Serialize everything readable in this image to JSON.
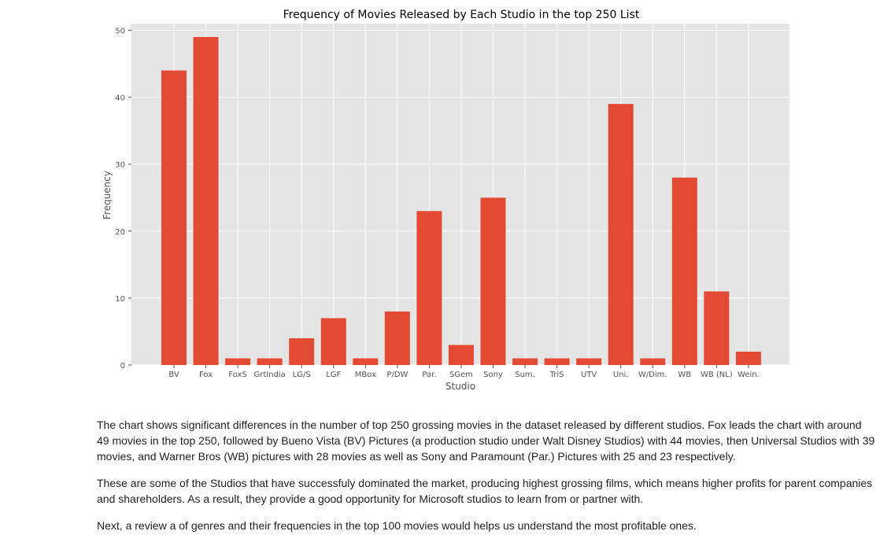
{
  "chart_data": {
    "type": "bar",
    "title": "Frequency of Movies Released by Each Studio in the top 250 List",
    "xlabel": "Studio",
    "ylabel": "Frequency",
    "categories": [
      "BV",
      "Fox",
      "FoxS",
      "GrtIndia",
      "LG/S",
      "LGF",
      "MBox",
      "P/DW",
      "Par.",
      "SGem",
      "Sony",
      "Sum.",
      "TriS",
      "UTV",
      "Uni.",
      "W/Dim.",
      "WB",
      "WB (NL)",
      "Wein."
    ],
    "values": [
      44,
      49,
      1,
      1,
      4,
      7,
      1,
      8,
      23,
      3,
      25,
      1,
      1,
      1,
      39,
      1,
      28,
      11,
      2
    ],
    "ylim": [
      0,
      51
    ],
    "yticks": [
      0,
      10,
      20,
      30,
      40,
      50
    ],
    "grid": true,
    "colors": {
      "bar": "#E24A33",
      "background": "#E5E5E5",
      "grid": "#FFFFFF"
    }
  },
  "paragraphs": [
    "The chart shows significant differences in the number of top 250 grossing movies in the dataset released by different studios. Fox leads the chart with around 49 movies in the top 250, followed by Bueno Vista (BV) Pictures (a production studio under Walt Disney Studios) with 44 movies, then Universal Studios with 39 movies, and Warner Bros (WB) pictures with 28 movies as well as Sony and Paramount (Par.) Pictures with 25 and 23 respectively.",
    "These are some of the Studios that have successfuly dominated the market, producing highest grossing films, which means higher profits for parent companies and shareholders. As a result, they provide a good opportunity for Microsoft studios to learn from or partner with.",
    "Next, a review a of genres and their frequencies in the top 100 movies would helps us understand the most profitable ones."
  ]
}
